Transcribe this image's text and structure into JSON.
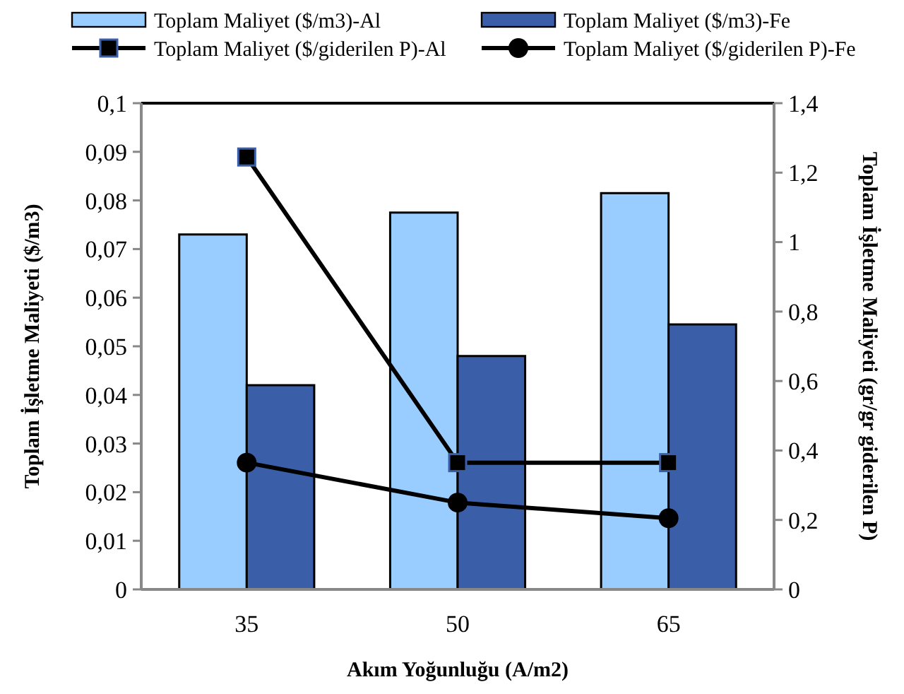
{
  "chart_data": {
    "type": "bar",
    "xlabel": "Akım Yoğunluğu (A/m2)",
    "ylabel": "Toplam İşletme Maliyeti ($/m3)",
    "y2label": "Toplam İşletme Maliyeti (gr/gr giderilen P)",
    "categories": [
      "35",
      "50",
      "65"
    ],
    "series": [
      {
        "name": "Toplam Maliyet ($/m3)-Al",
        "color": "#99ccff",
        "values": [
          0.073,
          0.0775,
          0.0815
        ]
      },
      {
        "name": "Toplam Maliyet ($/m3)-Fe",
        "color": "#3a5fa8",
        "values": [
          0.042,
          0.048,
          0.0545
        ]
      },
      {
        "name": "Toplam Maliyet ($/giderilen P)-Al",
        "type": "line",
        "axis": "y2",
        "color": "#000000",
        "marker": "square",
        "values": [
          1.245,
          0.365,
          0.365
        ]
      },
      {
        "name": "Toplam Maliyet ($/giderilen P)-Fe",
        "type": "line",
        "axis": "y2",
        "color": "#000000",
        "marker": "circle",
        "values": [
          0.365,
          0.25,
          0.205
        ]
      }
    ],
    "ylim": [
      0,
      0.1
    ],
    "yticks": [
      0,
      {
        "value": 0.01,
        "label": "0,01"
      },
      {
        "value": 0.02,
        "label": "0,02"
      },
      {
        "value": 0.03,
        "label": "0,03"
      },
      {
        "value": 0.04,
        "label": "0,04"
      },
      {
        "value": 0.05,
        "label": "0,05"
      },
      {
        "value": 0.06,
        "label": "0,06"
      },
      {
        "value": 0.07,
        "label": "0,07"
      },
      {
        "value": 0.08,
        "label": "0,08"
      },
      {
        "value": 0.09,
        "label": "0,09"
      },
      {
        "value": 0.1,
        "label": "0,1"
      }
    ],
    "y2lim": [
      0,
      1.4
    ],
    "y2ticks": [
      0,
      {
        "value": 0.2,
        "label": "0,2"
      },
      {
        "value": 0.4,
        "label": "0,4"
      },
      {
        "value": 0.6,
        "label": "0,6"
      },
      {
        "value": 0.8,
        "label": "0,8"
      },
      1,
      {
        "value": 1.2,
        "label": "1,2"
      },
      {
        "value": 1.4,
        "label": "1,4"
      }
    ],
    "grid": false,
    "legend": "top"
  }
}
